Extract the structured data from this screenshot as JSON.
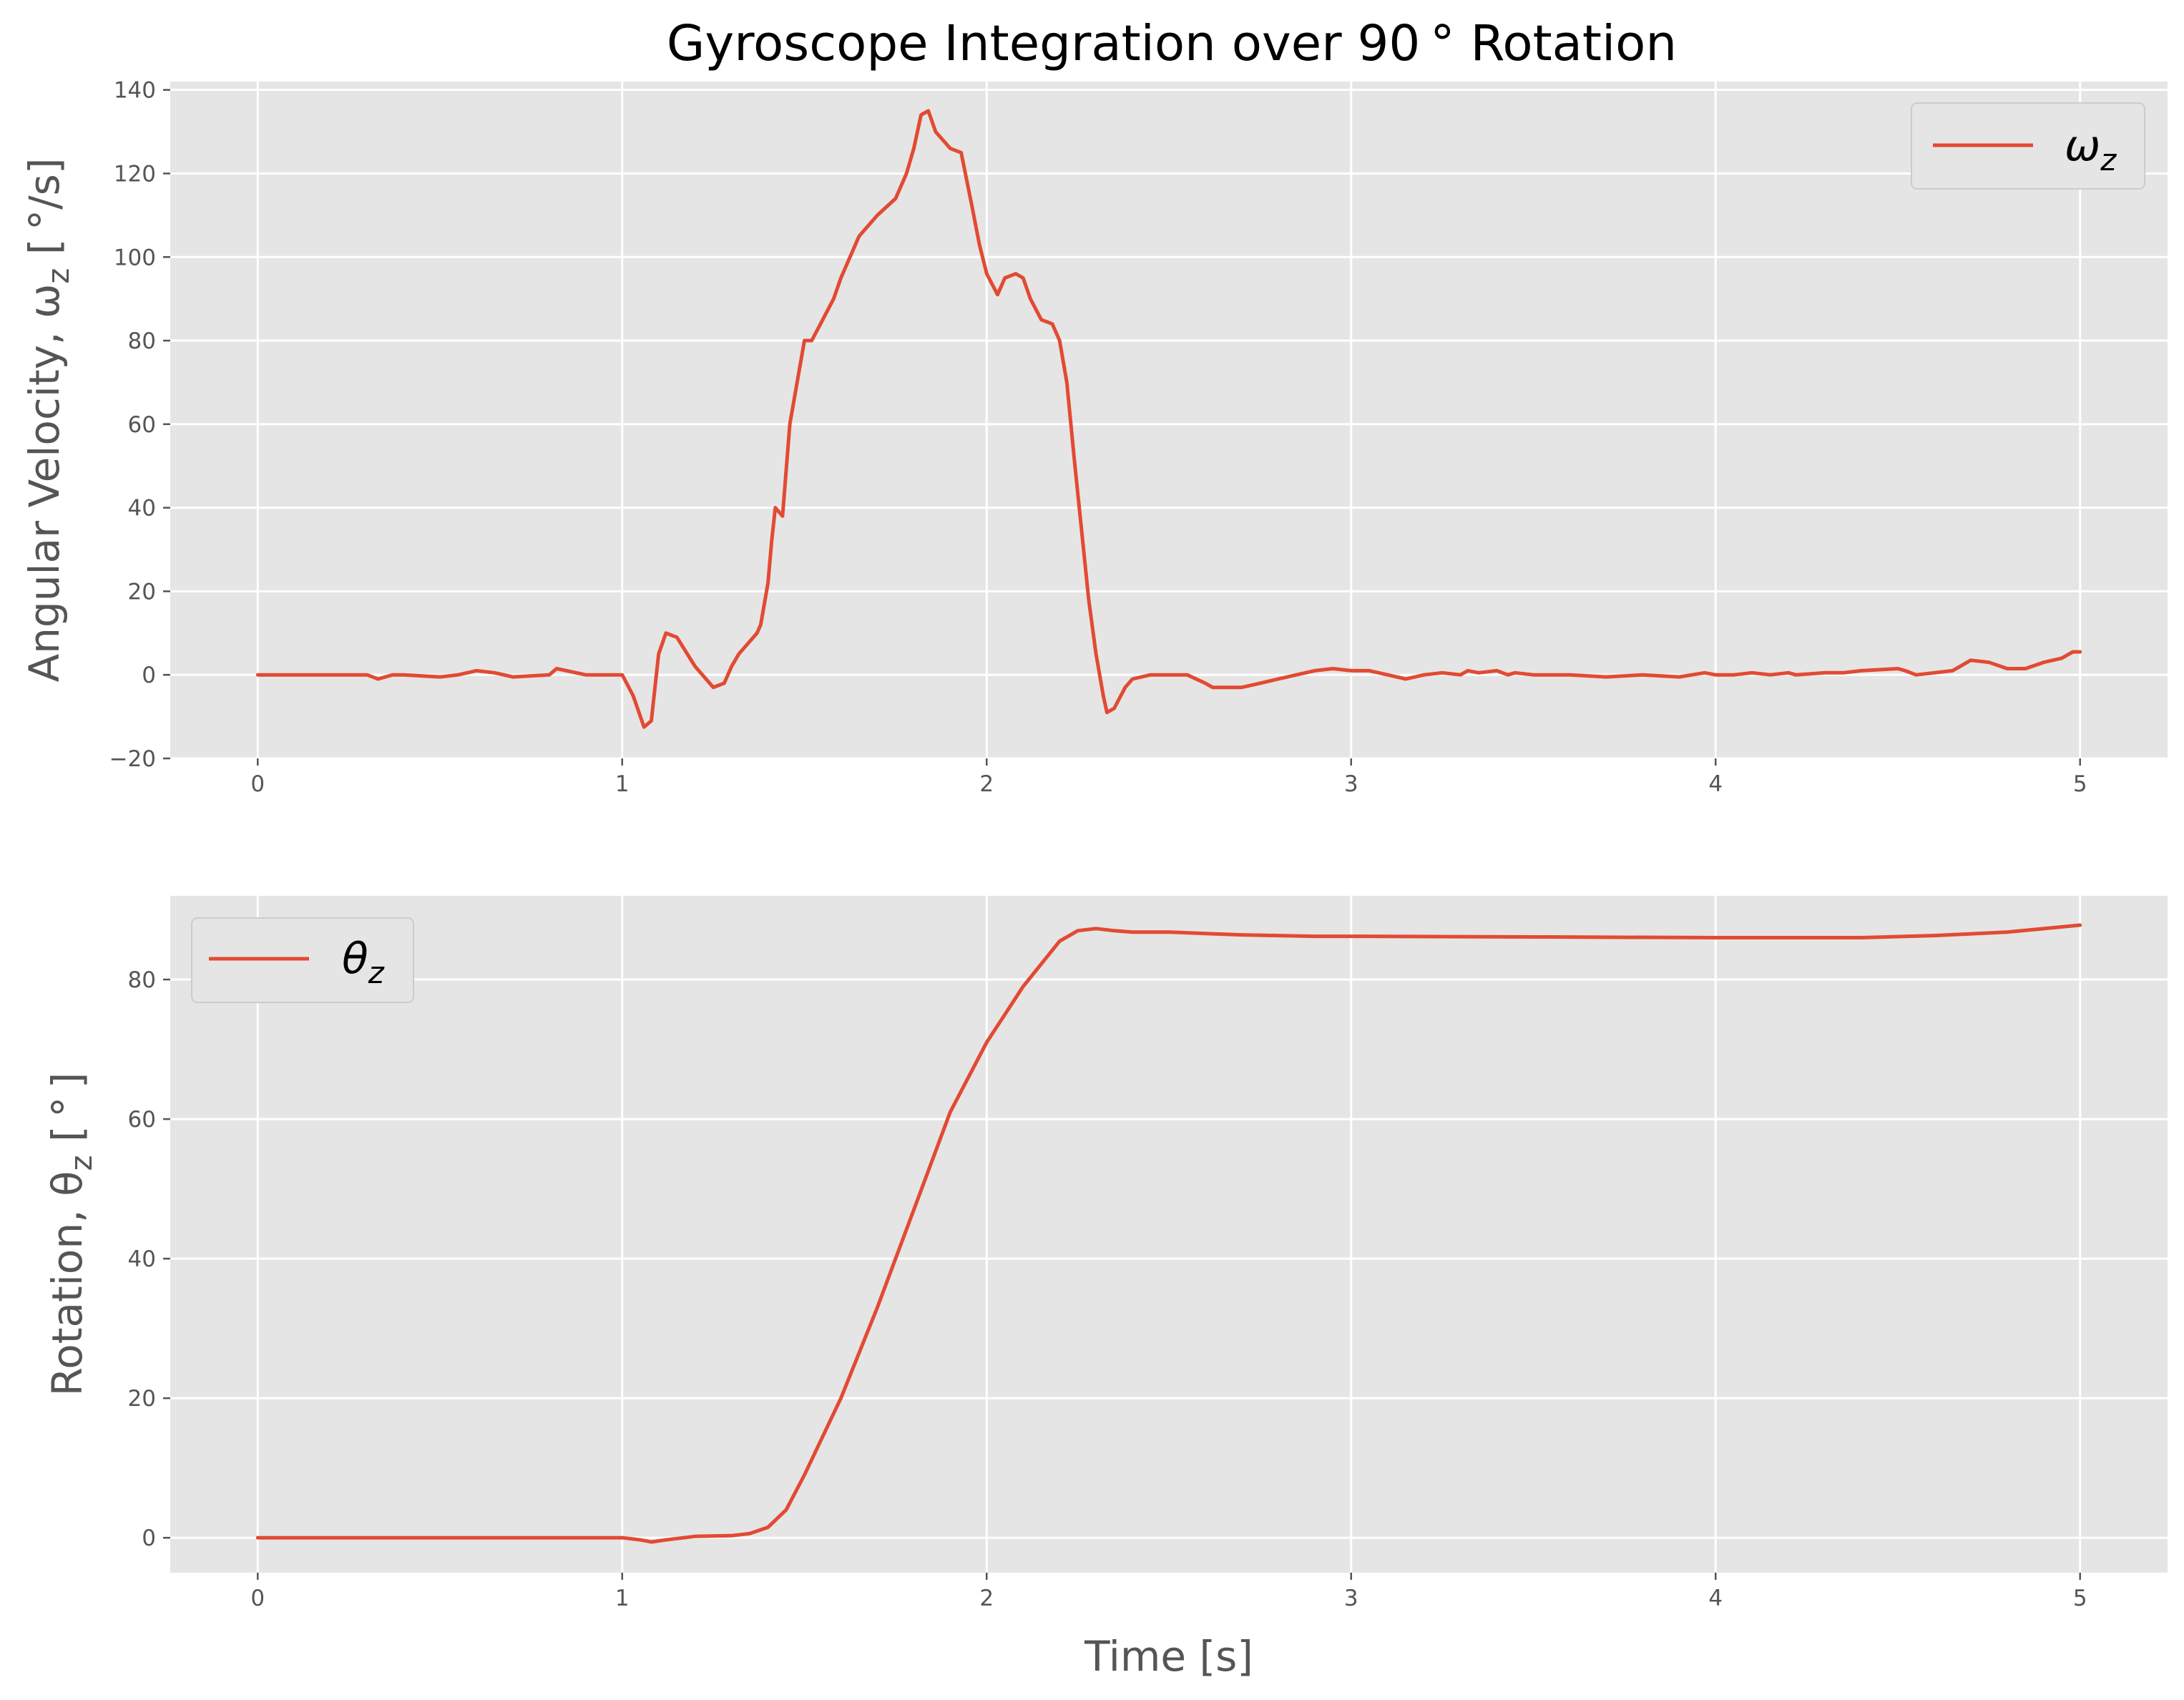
{
  "title": "Gyroscope Integration over 90$^\\circ$ Rotation",
  "title_display": "Gyroscope Integration over 90 ° Rotation",
  "colors": {
    "series": "#E24A33",
    "plot_background": "#E5E5E5",
    "grid": "#FFFFFF",
    "tick_text": "#555555"
  },
  "chart_data": [
    {
      "type": "line",
      "ylabel": "Angular Velocity, ωz [°/s]",
      "ylabel_display": "Angular Velocity, ω",
      "ylabel_sub": "z",
      "ylabel_tail": " [ °/s]",
      "xlabel": "",
      "xlim": [
        -0.24,
        5.24
      ],
      "ylim": [
        -20,
        142
      ],
      "xticks": [
        "0",
        "1",
        "2",
        "3",
        "4",
        "5"
      ],
      "yticks": [
        "−20",
        "0",
        "20",
        "40",
        "60",
        "80",
        "100",
        "120",
        "140"
      ],
      "ytick_values": [
        -20,
        0,
        20,
        40,
        60,
        80,
        100,
        120,
        140
      ],
      "xtick_values": [
        0,
        1,
        2,
        3,
        4,
        5
      ],
      "grid": true,
      "legend": {
        "position": "upper right",
        "entry": "ω",
        "sub": "z"
      },
      "series": [
        {
          "name": "ωz",
          "x": [
            0,
            0.1,
            0.2,
            0.3,
            0.33,
            0.35,
            0.37,
            0.4,
            0.5,
            0.55,
            0.6,
            0.65,
            0.7,
            0.8,
            0.82,
            0.9,
            0.95,
            1.0,
            1.03,
            1.06,
            1.08,
            1.1,
            1.12,
            1.15,
            1.2,
            1.25,
            1.28,
            1.3,
            1.32,
            1.35,
            1.37,
            1.38,
            1.4,
            1.41,
            1.42,
            1.44,
            1.46,
            1.5,
            1.52,
            1.55,
            1.58,
            1.6,
            1.65,
            1.7,
            1.75,
            1.78,
            1.8,
            1.82,
            1.84,
            1.86,
            1.9,
            1.93,
            1.96,
            1.98,
            2.0,
            2.03,
            2.05,
            2.08,
            2.1,
            2.12,
            2.15,
            2.18,
            2.2,
            2.22,
            2.24,
            2.26,
            2.28,
            2.3,
            2.32,
            2.33,
            2.35,
            2.38,
            2.4,
            2.45,
            2.5,
            2.55,
            2.6,
            2.62,
            2.7,
            2.75,
            2.8,
            2.85,
            2.9,
            2.95,
            3.0,
            3.05,
            3.1,
            3.15,
            3.2,
            3.25,
            3.3,
            3.32,
            3.35,
            3.4,
            3.43,
            3.45,
            3.5,
            3.6,
            3.7,
            3.8,
            3.9,
            3.97,
            4.0,
            4.05,
            4.1,
            4.15,
            4.2,
            4.22,
            4.3,
            4.35,
            4.4,
            4.5,
            4.52,
            4.55,
            4.6,
            4.65,
            4.7,
            4.75,
            4.8,
            4.85,
            4.9,
            4.95,
            4.98,
            5.0
          ],
          "values": [
            0,
            0,
            0,
            0,
            -1,
            -0.5,
            0,
            0,
            -0.5,
            0,
            1,
            0.5,
            -0.5,
            0,
            1.5,
            0,
            0,
            0,
            -5,
            -12.5,
            -11,
            5,
            10,
            9,
            2,
            -3,
            -2,
            2,
            5,
            8,
            10,
            12,
            22,
            32,
            40,
            38,
            60,
            80,
            80,
            85,
            90,
            95,
            105,
            110,
            114,
            120,
            126,
            134,
            135,
            130,
            126,
            125,
            112,
            103,
            96,
            91,
            95,
            96,
            95,
            90,
            85,
            84,
            80,
            70,
            52,
            35,
            18,
            5,
            -5,
            -9,
            -8,
            -3,
            -1,
            0,
            0,
            0,
            -2,
            -3,
            -3,
            -2,
            -1,
            0,
            1,
            1.5,
            1,
            1,
            0,
            -1,
            0,
            0.5,
            0,
            1,
            0.5,
            1,
            0,
            0.5,
            0,
            0,
            -0.5,
            0,
            -0.5,
            0.5,
            0,
            0,
            0.5,
            0,
            0.5,
            0,
            0.5,
            0.5,
            1,
            1.5,
            1,
            0,
            0.5,
            1,
            3.5,
            3,
            1.5,
            1.5,
            3,
            4,
            5.5,
            5.5
          ]
        }
      ]
    },
    {
      "type": "line",
      "ylabel": "Rotation, θz [°]",
      "ylabel_display": "Rotation, θ",
      "ylabel_sub": "z",
      "ylabel_tail": " [ ° ]",
      "xlabel": "Time [s]",
      "xlim": [
        -0.24,
        5.24
      ],
      "ylim": [
        -5,
        92
      ],
      "xticks": [
        "0",
        "1",
        "2",
        "3",
        "4",
        "5"
      ],
      "yticks": [
        "0",
        "20",
        "40",
        "60",
        "80"
      ],
      "ytick_values": [
        0,
        20,
        40,
        60,
        80
      ],
      "xtick_values": [
        0,
        1,
        2,
        3,
        4,
        5
      ],
      "grid": true,
      "legend": {
        "position": "upper left",
        "entry": "θ",
        "sub": "z"
      },
      "series": [
        {
          "name": "θz",
          "x": [
            0,
            0.5,
            1.0,
            1.05,
            1.08,
            1.12,
            1.2,
            1.3,
            1.35,
            1.4,
            1.45,
            1.5,
            1.6,
            1.7,
            1.8,
            1.9,
            2.0,
            2.1,
            2.2,
            2.25,
            2.3,
            2.35,
            2.4,
            2.5,
            2.6,
            2.7,
            2.8,
            2.9,
            3.0,
            3.5,
            4.0,
            4.4,
            4.6,
            4.8,
            5.0
          ],
          "values": [
            0,
            0,
            0,
            -0.3,
            -0.6,
            -0.3,
            0.2,
            0.3,
            0.6,
            1.5,
            4,
            9,
            20,
            33,
            47,
            61,
            71,
            79,
            85.5,
            87,
            87.3,
            87,
            86.8,
            86.8,
            86.6,
            86.4,
            86.3,
            86.2,
            86.2,
            86.1,
            86.0,
            86.0,
            86.3,
            86.8,
            87.8
          ]
        }
      ]
    }
  ]
}
